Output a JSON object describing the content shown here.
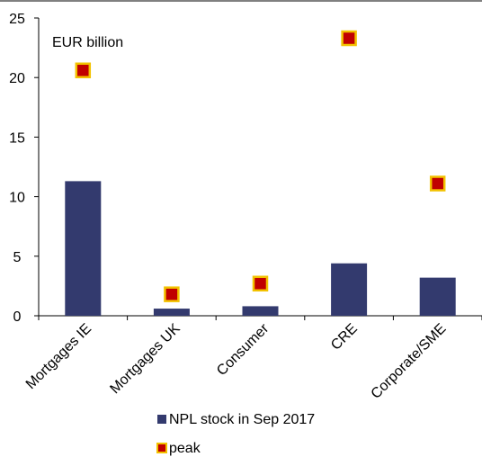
{
  "chart_data": {
    "type": "bar",
    "unit_label": "EUR billion",
    "categories": [
      "Mortgages IE",
      "Mortgages UK",
      "Consumer",
      "CRE",
      "Corporate/SME"
    ],
    "series": [
      {
        "name": "NPL stock in Sep 2017",
        "type": "bar",
        "values": [
          11.3,
          0.6,
          0.8,
          4.4,
          3.2
        ],
        "color": "#333a6e"
      },
      {
        "name": "peak",
        "type": "marker",
        "values": [
          20.6,
          1.8,
          2.7,
          23.3,
          11.1
        ],
        "color": "#c00000",
        "edge_color": "#f2c200"
      }
    ],
    "ylim": [
      0,
      25
    ],
    "yticks": [
      "0",
      "5",
      "10",
      "15",
      "20",
      "25"
    ],
    "ytick_values": [
      0,
      5,
      10,
      15,
      20,
      25
    ],
    "xlabel": "",
    "ylabel": "",
    "grid": false,
    "legend_position": "bottom"
  }
}
